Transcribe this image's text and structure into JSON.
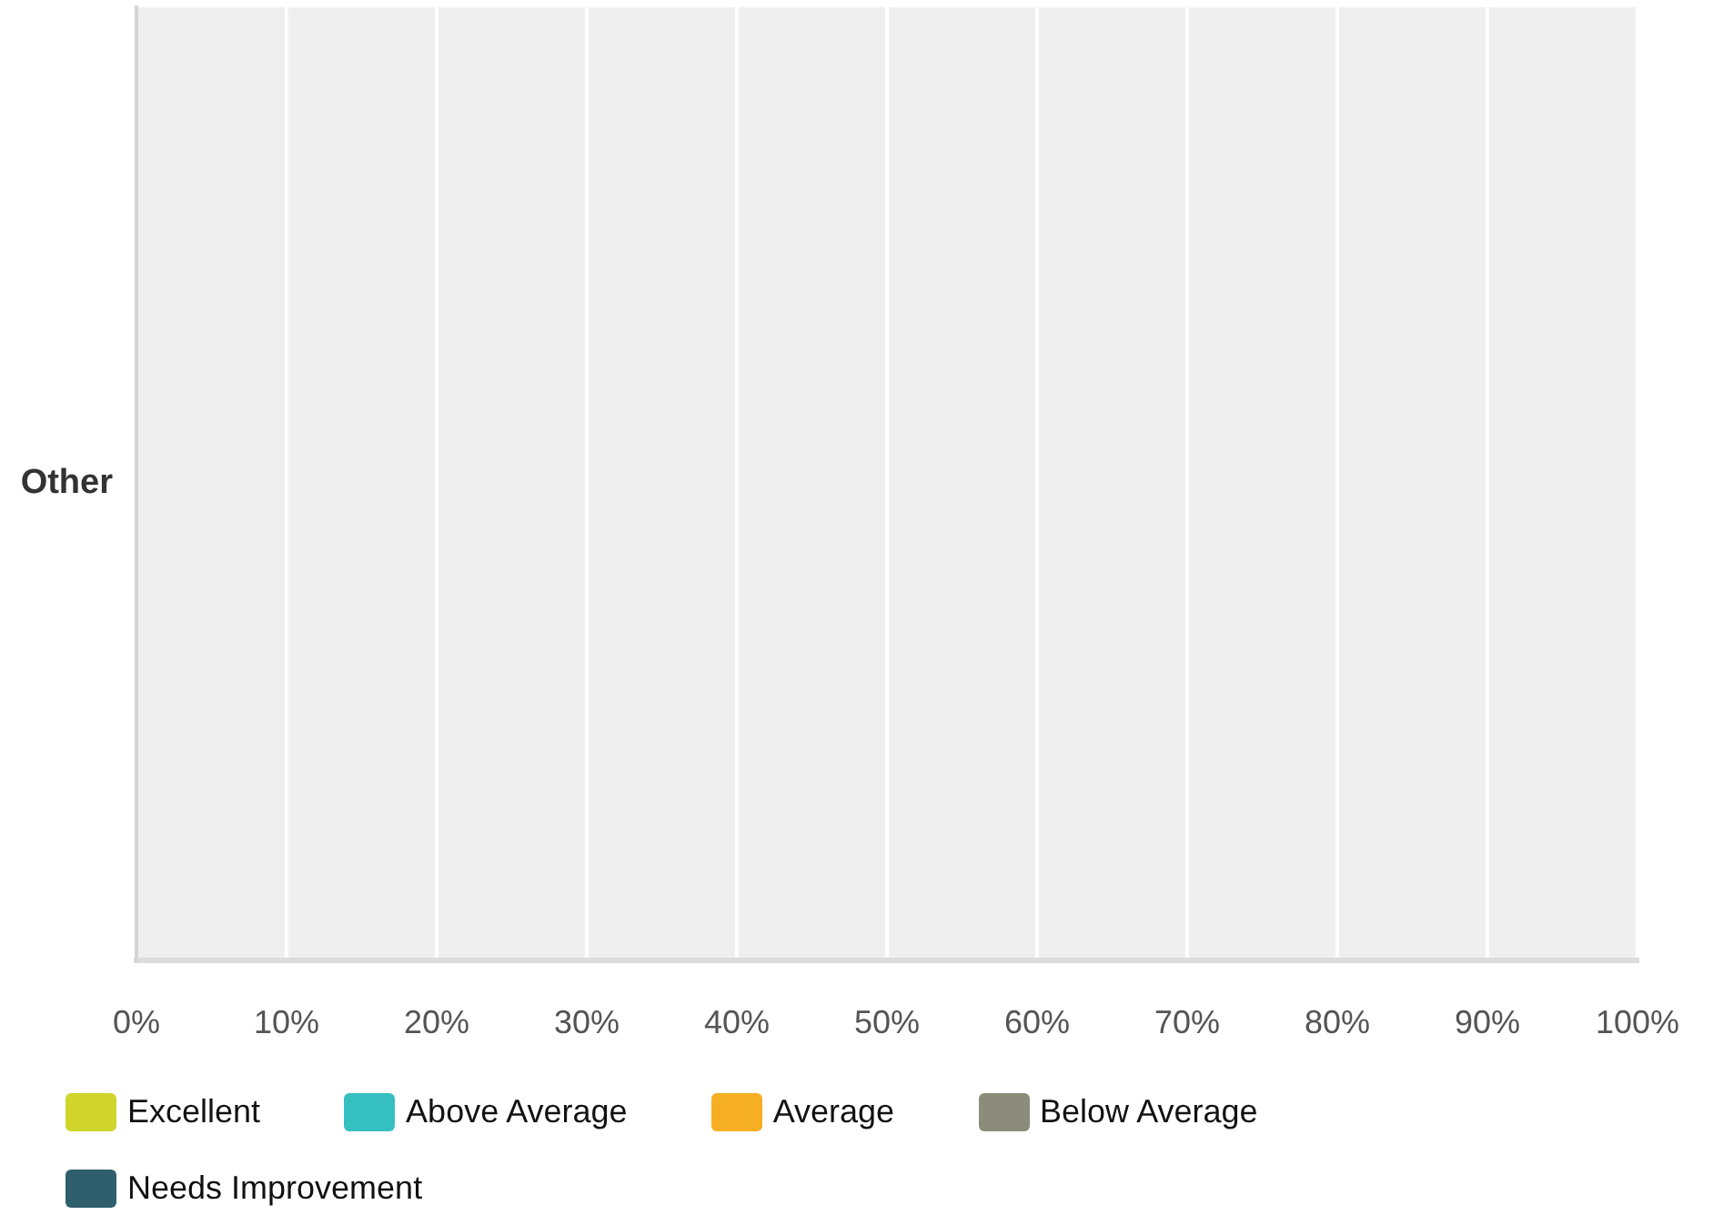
{
  "chart_data": {
    "type": "bar",
    "orientation": "horizontal",
    "categories": [
      "Other"
    ],
    "series": [
      {
        "name": "Excellent",
        "color": "#cfd52b",
        "values": [
          0
        ]
      },
      {
        "name": "Above Average",
        "color": "#35bfc0",
        "values": [
          0
        ]
      },
      {
        "name": "Average",
        "color": "#f6ae22",
        "values": [
          0
        ]
      },
      {
        "name": "Below Average",
        "color": "#8b8c7b",
        "values": [
          0
        ]
      },
      {
        "name": "Needs Improvement",
        "color": "#2f5f6d",
        "values": [
          0
        ]
      }
    ],
    "xlim": [
      0,
      100
    ],
    "xticks": [
      {
        "value": 0,
        "label": "0%"
      },
      {
        "value": 10,
        "label": "10%"
      },
      {
        "value": 20,
        "label": "20%"
      },
      {
        "value": 30,
        "label": "30%"
      },
      {
        "value": 40,
        "label": "40%"
      },
      {
        "value": 50,
        "label": "50%"
      },
      {
        "value": 60,
        "label": "60%"
      },
      {
        "value": 70,
        "label": "70%"
      },
      {
        "value": 80,
        "label": "80%"
      },
      {
        "value": 90,
        "label": "90%"
      },
      {
        "value": 100,
        "label": "100%"
      }
    ],
    "grid": "x",
    "legend": "bottom left"
  }
}
